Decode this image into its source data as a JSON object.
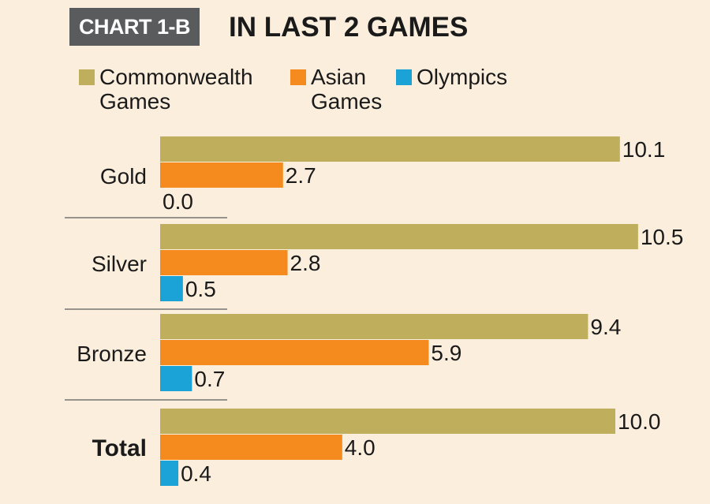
{
  "header": {
    "tag": "CHART 1-B",
    "title": "IN LAST 2 GAMES"
  },
  "colors": {
    "background": "#fbeedd",
    "tag_background": "#5a5b5d"
  },
  "legend": [
    {
      "line1": "Commonwealth",
      "line2": "Games",
      "color": "#bfae5c"
    },
    {
      "line1": "Asian",
      "line2": "Games",
      "color": "#f58b1f"
    },
    {
      "line1": "Olympics",
      "line2": "",
      "color": "#1ba3d8"
    }
  ],
  "chart_data": {
    "type": "bar",
    "orientation": "horizontal",
    "categories": [
      "Gold",
      "Silver",
      "Bronze",
      "Total"
    ],
    "series": [
      {
        "name": "Commonwealth Games",
        "color": "#bfae5c",
        "values": [
          10.1,
          10.5,
          9.4,
          10.0
        ]
      },
      {
        "name": "Asian Games",
        "color": "#f58b1f",
        "values": [
          2.7,
          2.8,
          5.9,
          4.0
        ]
      },
      {
        "name": "Olympics",
        "color": "#1ba3d8",
        "values": [
          0.0,
          0.5,
          0.7,
          0.4
        ]
      }
    ],
    "value_labels": [
      [
        "10.1",
        "10.5",
        "9.4",
        "10.0"
      ],
      [
        "2.7",
        "2.8",
        "5.9",
        "4.0"
      ],
      [
        "0.0",
        "0.5",
        "0.7",
        "0.4"
      ]
    ],
    "bold_categories": [
      "Total"
    ],
    "xlim": [
      0,
      10.5
    ],
    "grid": false,
    "legend_position": "top"
  }
}
